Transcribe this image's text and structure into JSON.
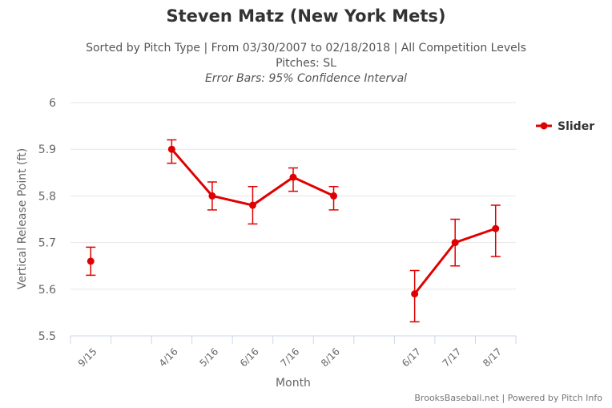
{
  "chart_data": {
    "type": "line",
    "title": "Steven Matz (New York Mets)",
    "subtitle_lines": [
      "Sorted by Pitch Type | From 03/30/2007 to 02/18/2018 | All Competition Levels",
      "Pitches: SL",
      "Error Bars: 95% Confidence Interval"
    ],
    "xlabel": "Month",
    "ylabel": "Vertical Release Point (ft)",
    "ylim": [
      5.5,
      6
    ],
    "yticks": [
      "5.5",
      "5.6",
      "5.7",
      "5.8",
      "5.9",
      "6"
    ],
    "categories": [
      "9/15",
      "",
      "4/16",
      "5/16",
      "6/16",
      "7/16",
      "8/16",
      "",
      "6/17",
      "7/17",
      "8/17"
    ],
    "grid": true,
    "legend_position": "top-right",
    "series": [
      {
        "name": "Slider",
        "color": "#e00000",
        "values": [
          5.66,
          null,
          5.9,
          5.8,
          5.78,
          5.84,
          5.8,
          null,
          5.59,
          5.7,
          5.73
        ],
        "error_low": [
          5.63,
          null,
          5.87,
          5.77,
          5.74,
          5.81,
          5.77,
          null,
          5.53,
          5.65,
          5.67
        ],
        "error_high": [
          5.69,
          null,
          5.92,
          5.83,
          5.82,
          5.86,
          5.82,
          null,
          5.64,
          5.75,
          5.78
        ]
      }
    ]
  },
  "credit": "BrooksBaseball.net | Powered by Pitch Info"
}
